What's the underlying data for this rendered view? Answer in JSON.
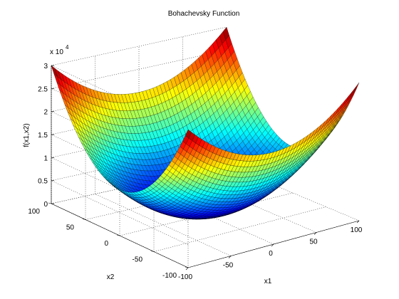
{
  "chart_data": {
    "type": "surface",
    "title": "Bohachevsky Function",
    "xlabel": "x1",
    "ylabel": "x2",
    "zlabel": "f(x1,x2)",
    "z_exponent_label": "x 10",
    "z_exponent_power": "4",
    "function": "x1^2 + 2*x2^2 - 0.3*cos(3*pi*x1) - 0.4*cos(4*pi*x2) + 0.7",
    "xlim": [
      -100,
      100
    ],
    "ylim": [
      -100,
      100
    ],
    "zlim": [
      0,
      30000
    ],
    "x_ticks": [
      {
        "v": -100,
        "label": "-100"
      },
      {
        "v": -50,
        "label": "-50"
      },
      {
        "v": 0,
        "label": "0"
      },
      {
        "v": 50,
        "label": "50"
      },
      {
        "v": 100,
        "label": "100"
      }
    ],
    "y_ticks": [
      {
        "v": -100,
        "label": "-100"
      },
      {
        "v": -50,
        "label": "-50"
      },
      {
        "v": 0,
        "label": "0"
      },
      {
        "v": 50,
        "label": "50"
      },
      {
        "v": 100,
        "label": "100"
      }
    ],
    "z_ticks": [
      {
        "v": 0,
        "label": "0"
      },
      {
        "v": 5000,
        "label": "0.5"
      },
      {
        "v": 10000,
        "label": "1"
      },
      {
        "v": 15000,
        "label": "1.5"
      },
      {
        "v": 20000,
        "label": "2"
      },
      {
        "v": 25000,
        "label": "2.5"
      },
      {
        "v": 30000,
        "label": "3"
      }
    ],
    "grid": true,
    "colormap": "jet",
    "mesh_color": "#000000"
  }
}
